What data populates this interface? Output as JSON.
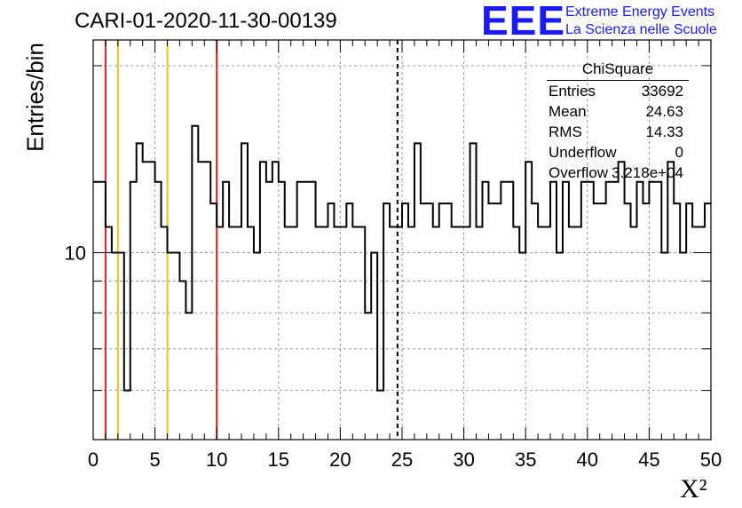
{
  "header": {
    "title": "CARI-01-2020-11-30-00139",
    "logo_text": "EEE",
    "logo_line1": "Extreme Energy Events",
    "logo_line2": "La Scienza nelle Scuole"
  },
  "stats_box": {
    "name": "ChiSquare",
    "rows": [
      {
        "key": "Entries",
        "value": "33692"
      },
      {
        "key": "Mean",
        "value": "24.63"
      },
      {
        "key": "RMS",
        "value": "14.33"
      },
      {
        "key": "Underflow",
        "value": "0"
      },
      {
        "key": "Overflow",
        "value": "3.218e+04"
      }
    ]
  },
  "colors": {
    "red_line": "#e0221e",
    "yellow_line": "#f0c020",
    "histogram": "#000000",
    "grid": "#9a9a9a",
    "logo": "#1a1aff"
  },
  "chart_data": {
    "type": "histogram",
    "title": "CARI-01-2020-11-30-00139",
    "xlabel": "X²",
    "ylabel": "Entries/bin",
    "xlim": [
      0,
      50
    ],
    "ylim": [
      5,
      22
    ],
    "log_y": true,
    "grid": true,
    "bin_width": 0.5,
    "x_ticks": [
      0,
      5,
      10,
      15,
      20,
      25,
      30,
      35,
      40,
      45,
      50
    ],
    "y_tick_labels": [
      10
    ],
    "vertical_lines": [
      {
        "x": 1,
        "color": "red",
        "style": "solid"
      },
      {
        "x": 2,
        "color": "yellow",
        "style": "solid"
      },
      {
        "x": 6,
        "color": "yellow",
        "style": "solid"
      },
      {
        "x": 10,
        "color": "red",
        "style": "solid"
      },
      {
        "x": 24.63,
        "color": "black",
        "style": "dashed"
      }
    ],
    "values": [
      13,
      13,
      11,
      10,
      10,
      6,
      13,
      15,
      14,
      14,
      13,
      11,
      10,
      10,
      9,
      8,
      16,
      14,
      14,
      12,
      11,
      13,
      11,
      11,
      15,
      11,
      10,
      14,
      13,
      14,
      13,
      11,
      11,
      13,
      13,
      13,
      11,
      11,
      12,
      11,
      11,
      12,
      11,
      11,
      8,
      10,
      6,
      12,
      11,
      11,
      12,
      11,
      15,
      12,
      12,
      11,
      12,
      12,
      11,
      11,
      11,
      15,
      11,
      13,
      12,
      12,
      13,
      13,
      11,
      10,
      14,
      12,
      11,
      11,
      13,
      10,
      13,
      11,
      11,
      13,
      13,
      12,
      12,
      13,
      13,
      14,
      12,
      11,
      13,
      12,
      13,
      13,
      10,
      14,
      12,
      10,
      12,
      11,
      11,
      12
    ]
  }
}
